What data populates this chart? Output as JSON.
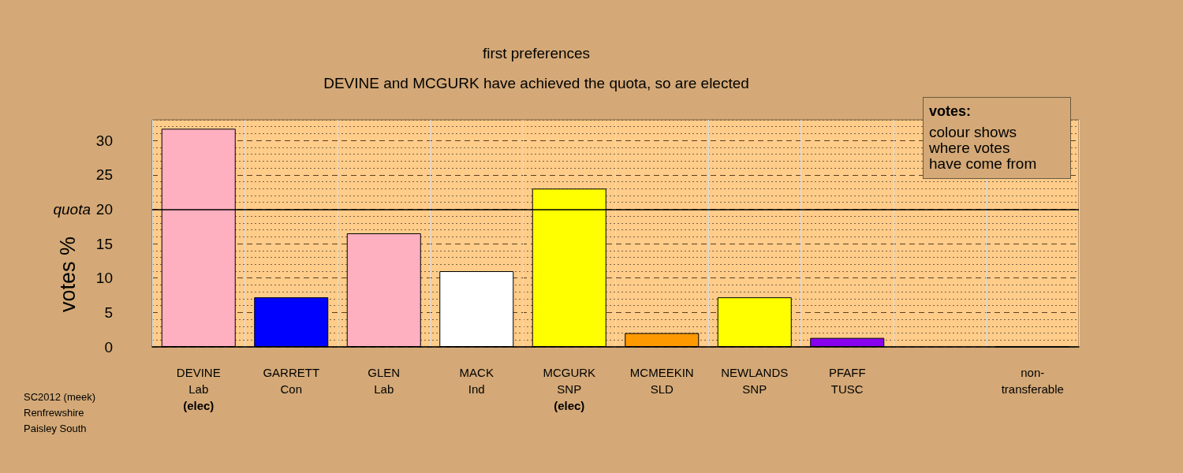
{
  "chart_data": {
    "type": "bar",
    "title": "first preferences",
    "subtitle": "DEVINE and MCGURK have achieved the quota, so are elected",
    "ylabel": "votes %",
    "categories": [
      "DEVINE\nLab\n(elec)",
      "GARRETT\nCon",
      "GLEN\nLab",
      "MACK\nInd",
      "MCGURK\nSNP\n(elec)",
      "MCMEEKIN\nSLD",
      "NEWLANDS\nSNP",
      "PFAFF\nTUSC",
      null,
      "non-\ntransferable"
    ],
    "values": [
      31.7,
      7.2,
      16.5,
      11.0,
      23.0,
      2.0,
      7.2,
      1.3,
      null,
      0
    ],
    "colors": [
      "#ffb0c0",
      "#0000ff",
      "#ffb0c0",
      "#ffffff",
      "#ffff00",
      "#ff9900",
      "#ffff00",
      "#8800ee",
      null,
      "#000000"
    ],
    "ylim": [
      0,
      33
    ],
    "yticks": [
      0,
      {
        "value": 1,
        "label": null
      },
      {
        "value": 2,
        "label": null
      },
      {
        "value": 3,
        "label": null
      },
      {
        "value": 4,
        "label": null
      },
      5,
      {
        "value": 6,
        "label": null
      },
      {
        "value": 7,
        "label": null
      },
      {
        "value": 8,
        "label": null
      },
      {
        "value": 9,
        "label": null
      },
      10,
      {
        "value": 11,
        "label": null
      },
      {
        "value": 12,
        "label": null
      },
      {
        "value": 13,
        "label": null
      },
      {
        "value": 14,
        "label": null
      },
      15,
      {
        "value": 16,
        "label": null
      },
      {
        "value": 17,
        "label": null
      },
      {
        "value": 18,
        "label": null
      },
      {
        "value": 19,
        "label": null
      },
      20,
      {
        "value": 21,
        "label": null
      },
      {
        "value": 22,
        "label": null
      },
      {
        "value": 23,
        "label": null
      },
      {
        "value": 24,
        "label": null
      },
      25,
      {
        "value": 26,
        "label": null
      },
      {
        "value": 27,
        "label": null
      },
      {
        "value": 28,
        "label": null
      },
      {
        "value": 29,
        "label": null
      },
      30,
      {
        "value": 31,
        "label": null
      },
      {
        "value": 32,
        "label": null
      },
      {
        "value": 33,
        "label": null
      }
    ],
    "grid": true,
    "ref_lines": [
      {
        "axis": "y",
        "value": 20,
        "label": "quota",
        "color": "#000000"
      }
    ],
    "annotations": [
      "votes:",
      "colour shows where votes have come from",
      "SC2012 (meek)\nRenfrewshire\nPaisley South"
    ]
  }
}
